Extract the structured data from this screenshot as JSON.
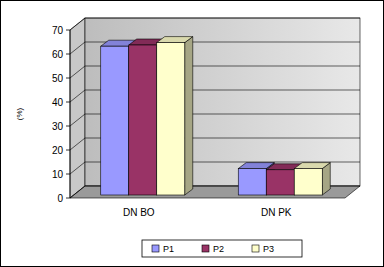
{
  "chart_data": {
    "type": "bar",
    "y_label": "(%)",
    "categories": [
      "DN BO",
      "DN PK"
    ],
    "series": [
      {
        "name": "P1",
        "color": "#9999ff",
        "values": [
          62,
          11
        ]
      },
      {
        "name": "P2",
        "color": "#993366",
        "values": [
          62.5,
          10.5
        ]
      },
      {
        "name": "P3",
        "color": "#ffffcc",
        "values": [
          63.5,
          11
        ]
      }
    ],
    "ylim": [
      0,
      70
    ],
    "yticks": [
      0,
      10,
      20,
      30,
      40,
      50,
      60,
      70
    ],
    "grid": true,
    "legend": "bottom"
  }
}
